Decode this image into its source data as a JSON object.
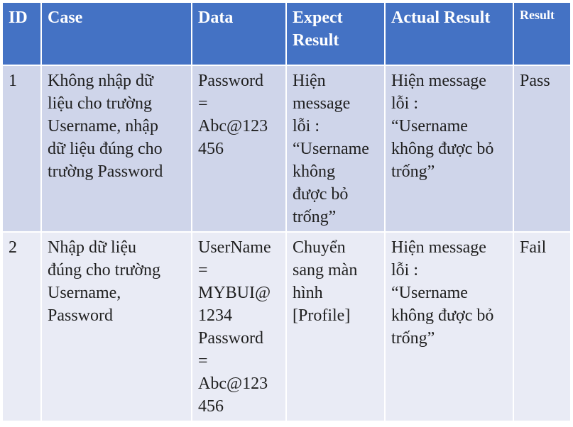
{
  "headers": {
    "id": "ID",
    "case": "Case",
    "data": "Data",
    "expect": "Expect\nResult",
    "actual": "Actual Result",
    "result": "Result"
  },
  "rows": [
    {
      "id": "1",
      "case": "Không nhập dữ\nliệu cho trường\nUsername, nhập\ndữ liệu đúng cho\ntrường Password",
      "data": "Password\n=\nAbc@123\n456",
      "expect": "Hiện\nmessage\nlỗi :\n“Username\nkhông\nđược bỏ\ntrống”",
      "actual": "Hiện message\nlỗi :\n“Username\nkhông được bỏ\ntrống”",
      "result": "Pass"
    },
    {
      "id": "2",
      "case": "Nhập dữ liệu\nđúng cho trường\nUsername,\nPassword",
      "data": "UserName\n=\nMYBUI@\n1234\nPassword\n=\nAbc@123\n456",
      "expect": "Chuyển\nsang màn\nhình\n[Profile]",
      "actual": "Hiện message\nlỗi :\n“Username\nkhông được bỏ\ntrống”",
      "result": "Fail"
    }
  ]
}
